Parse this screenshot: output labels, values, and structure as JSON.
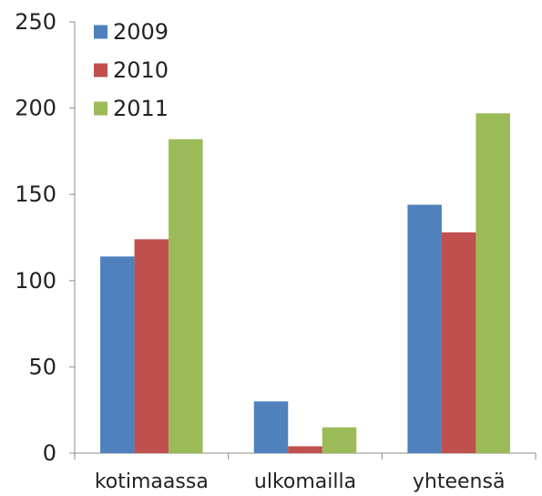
{
  "chart_data": {
    "type": "bar",
    "categories": [
      "kotimaassa",
      "ulkomailla",
      "yhteensä"
    ],
    "series": [
      {
        "name": "2009",
        "values": [
          114,
          30,
          144
        ],
        "color": "#4F81BD"
      },
      {
        "name": "2010",
        "values": [
          124,
          4,
          128
        ],
        "color": "#C0504D"
      },
      {
        "name": "2011",
        "values": [
          182,
          15,
          197
        ],
        "color": "#9BBB59"
      }
    ],
    "ylim": [
      0,
      250
    ],
    "yticks": [
      0,
      50,
      100,
      150,
      200,
      250
    ],
    "grid": false,
    "legend": "top-left"
  }
}
